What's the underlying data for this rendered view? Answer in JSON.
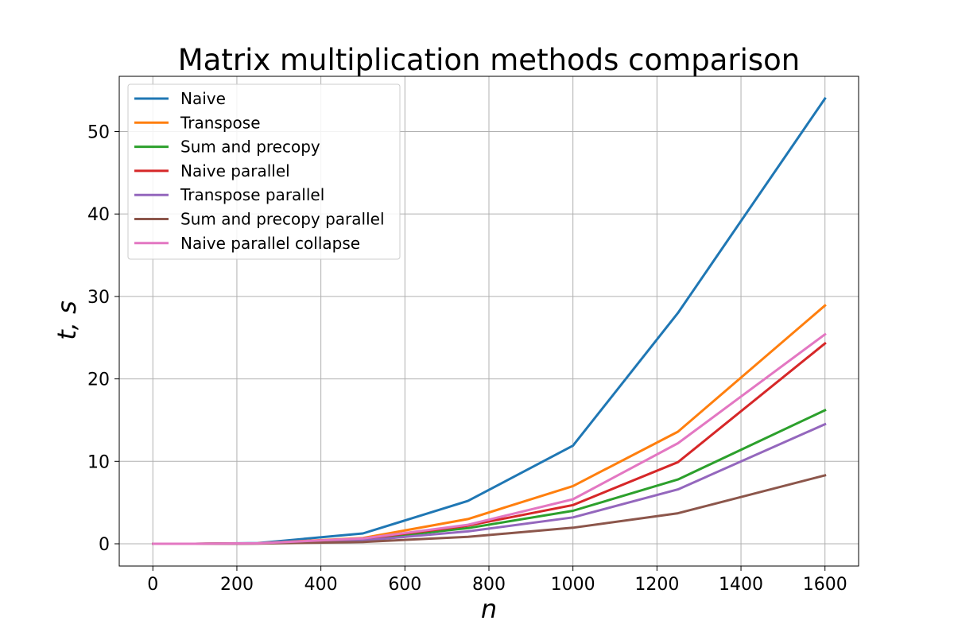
{
  "chart_data": {
    "type": "line",
    "title": "Matrix multiplication methods comparison",
    "xlabel": "n",
    "ylabel": "t, s",
    "xlim": [
      -80,
      1680
    ],
    "ylim": [
      -2.7,
      56.7
    ],
    "xticks": [
      0,
      200,
      400,
      600,
      800,
      1000,
      1200,
      1400,
      1600
    ],
    "yticks": [
      0,
      10,
      20,
      30,
      40,
      50
    ],
    "grid": true,
    "legend": "top-left",
    "x": [
      1,
      10,
      100,
      250,
      500,
      750,
      1000,
      1250,
      1600
    ],
    "series": [
      {
        "name": "Naive",
        "color": "#1f77b4",
        "values": [
          0.0,
          0.0,
          0.0,
          0.09,
          1.25,
          5.2,
          11.9,
          28.0,
          54.0
        ]
      },
      {
        "name": "Transpose",
        "color": "#ff7f0e",
        "values": [
          0.0,
          0.0,
          0.0,
          0.06,
          0.7,
          3.0,
          7.0,
          13.6,
          28.9
        ]
      },
      {
        "name": "Sum and precopy",
        "color": "#2ca02c",
        "values": [
          0.0,
          0.0,
          0.0,
          0.05,
          0.5,
          1.9,
          4.0,
          7.8,
          16.2
        ]
      },
      {
        "name": "Naive parallel",
        "color": "#d62728",
        "values": [
          0.0,
          0.0,
          0.0,
          0.05,
          0.6,
          2.2,
          4.7,
          9.9,
          24.3
        ]
      },
      {
        "name": "Transpose parallel",
        "color": "#9467bd",
        "values": [
          0.0,
          0.0,
          0.0,
          0.04,
          0.4,
          1.5,
          3.2,
          6.6,
          14.5
        ]
      },
      {
        "name": "Sum and precopy parallel",
        "color": "#8c564b",
        "values": [
          0.0,
          0.0,
          0.0,
          0.03,
          0.22,
          0.85,
          1.95,
          3.7,
          8.3
        ]
      },
      {
        "name": "Naive parallel collapse",
        "color": "#e377c2",
        "values": [
          0.0,
          0.0,
          0.0,
          0.06,
          0.65,
          2.3,
          5.4,
          12.2,
          25.4
        ]
      }
    ]
  }
}
